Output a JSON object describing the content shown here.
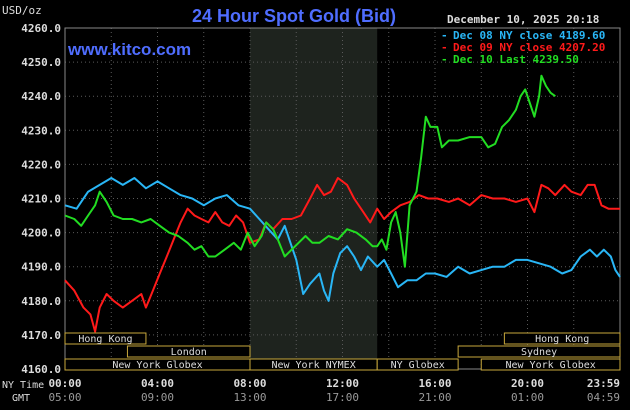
{
  "header": {
    "title": "24 Hour Spot Gold (Bid)",
    "date": "December 10, 2025 20:18",
    "watermark": "www.kitco.com",
    "currency_label": "USD/oz"
  },
  "colors": {
    "background": "#000000",
    "title": "#4f6dff",
    "text": "#dddddd",
    "grid": "#5a5a5a",
    "market_panel": "#1e231e",
    "session_border": "#c8a83c",
    "dec08": "#29b6f6",
    "dec09": "#ff1a1a",
    "dec10": "#22dd22"
  },
  "legend": [
    {
      "prefix": "-",
      "label": "Dec 08 NY close 4189.60",
      "color": "#29b6f6"
    },
    {
      "prefix": "-",
      "label": "Dec 09 NY close 4207.20",
      "color": "#ff1a1a"
    },
    {
      "prefix": "-",
      "label": "Dec 10 Last 4239.50",
      "color": "#22dd22"
    }
  ],
  "axis": {
    "ny_time_label": "NY Time",
    "gmt_label": "GMT",
    "ny_ticks": [
      "00:00",
      "04:00",
      "08:00",
      "12:00",
      "16:00",
      "20:00",
      "23:59"
    ],
    "gmt_ticks": [
      "05:00",
      "09:00",
      "13:00",
      "17:00",
      "21:00",
      "01:00",
      "04:59"
    ],
    "y_ticks": [
      "4260.0",
      "4250.0",
      "4240.0",
      "4230.0",
      "4220.0",
      "4210.0",
      "4200.0",
      "4190.0",
      "4180.0",
      "4170.0",
      "4160.0"
    ]
  },
  "sessions": [
    {
      "label": "Hong Kong",
      "start": 0,
      "end": 3.5
    },
    {
      "label": "London",
      "start": 2.7,
      "end": 8.0
    },
    {
      "label": "New York Globex",
      "start": 0,
      "end": 8.0
    },
    {
      "label": "New York NYMEX",
      "start": 8.0,
      "end": 13.5
    },
    {
      "label": "NY Globex",
      "start": 13.5,
      "end": 17.0
    },
    {
      "label": "Hong Kong",
      "start": 19.0,
      "end": 24
    },
    {
      "label": "Sydney",
      "start": 17.0,
      "end": 24
    },
    {
      "label": "New York Globex",
      "start": 18.0,
      "end": 24
    }
  ],
  "chart_data": {
    "type": "line",
    "title": "24 Hour Spot Gold (Bid)",
    "ylabel": "USD/oz",
    "xlabel": "NY Time",
    "x_unit": "hours since 00:00 NY time",
    "xlim": [
      0,
      24
    ],
    "ylim": [
      4160,
      4260
    ],
    "grid": true,
    "legend_position": "top-right",
    "market_hours_shaded": [
      8.0,
      13.5
    ],
    "series": [
      {
        "name": "Dec 08 NY close 4189.60",
        "color": "#29b6f6",
        "points": [
          [
            0,
            4208
          ],
          [
            0.5,
            4207
          ],
          [
            1,
            4212
          ],
          [
            1.5,
            4214
          ],
          [
            2,
            4216
          ],
          [
            2.5,
            4214
          ],
          [
            3,
            4216
          ],
          [
            3.5,
            4213
          ],
          [
            4,
            4215
          ],
          [
            4.5,
            4213
          ],
          [
            5,
            4211
          ],
          [
            5.5,
            4210
          ],
          [
            6,
            4208
          ],
          [
            6.5,
            4210
          ],
          [
            7,
            4211
          ],
          [
            7.5,
            4208
          ],
          [
            8,
            4207
          ],
          [
            8.4,
            4204
          ],
          [
            8.8,
            4201
          ],
          [
            9.2,
            4198
          ],
          [
            9.5,
            4202
          ],
          [
            9.8,
            4196
          ],
          [
            10,
            4192
          ],
          [
            10.3,
            4182
          ],
          [
            10.6,
            4185
          ],
          [
            11,
            4188
          ],
          [
            11.2,
            4183
          ],
          [
            11.4,
            4180
          ],
          [
            11.6,
            4188
          ],
          [
            11.9,
            4194
          ],
          [
            12.2,
            4196
          ],
          [
            12.5,
            4193
          ],
          [
            12.8,
            4189
          ],
          [
            13.1,
            4193
          ],
          [
            13.5,
            4190
          ],
          [
            13.8,
            4192
          ],
          [
            14.1,
            4188
          ],
          [
            14.4,
            4184
          ],
          [
            14.8,
            4186
          ],
          [
            15.2,
            4186
          ],
          [
            15.6,
            4188
          ],
          [
            16,
            4188
          ],
          [
            16.5,
            4187
          ],
          [
            17,
            4190
          ],
          [
            17.5,
            4188
          ],
          [
            18,
            4189
          ],
          [
            18.5,
            4190
          ],
          [
            19,
            4190
          ],
          [
            19.5,
            4192
          ],
          [
            20,
            4192
          ],
          [
            20.5,
            4191
          ],
          [
            21,
            4190
          ],
          [
            21.5,
            4188
          ],
          [
            21.9,
            4189
          ],
          [
            22.3,
            4193
          ],
          [
            22.7,
            4195
          ],
          [
            23,
            4193
          ],
          [
            23.3,
            4195
          ],
          [
            23.6,
            4193
          ],
          [
            23.8,
            4189
          ],
          [
            24,
            4187
          ]
        ]
      },
      {
        "name": "Dec 09 NY close 4207.20",
        "color": "#ff1a1a",
        "points": [
          [
            0,
            4186
          ],
          [
            0.4,
            4183
          ],
          [
            0.8,
            4178
          ],
          [
            1.1,
            4176
          ],
          [
            1.3,
            4171
          ],
          [
            1.5,
            4178
          ],
          [
            1.8,
            4182
          ],
          [
            2.1,
            4180
          ],
          [
            2.5,
            4178
          ],
          [
            2.9,
            4180
          ],
          [
            3.3,
            4182
          ],
          [
            3.5,
            4178
          ],
          [
            3.8,
            4183
          ],
          [
            4.1,
            4188
          ],
          [
            4.4,
            4193
          ],
          [
            4.7,
            4198
          ],
          [
            5,
            4203
          ],
          [
            5.3,
            4207
          ],
          [
            5.6,
            4205
          ],
          [
            5.9,
            4204
          ],
          [
            6.2,
            4203
          ],
          [
            6.5,
            4206
          ],
          [
            6.8,
            4203
          ],
          [
            7.1,
            4202
          ],
          [
            7.4,
            4205
          ],
          [
            7.7,
            4203
          ],
          [
            8,
            4197
          ],
          [
            8.4,
            4198
          ],
          [
            8.7,
            4203
          ],
          [
            9,
            4201
          ],
          [
            9.4,
            4204
          ],
          [
            9.8,
            4204
          ],
          [
            10.2,
            4205
          ],
          [
            10.6,
            4210
          ],
          [
            10.9,
            4214
          ],
          [
            11.2,
            4211
          ],
          [
            11.5,
            4212
          ],
          [
            11.8,
            4216
          ],
          [
            12.2,
            4214
          ],
          [
            12.5,
            4210
          ],
          [
            12.9,
            4206
          ],
          [
            13.2,
            4203
          ],
          [
            13.5,
            4207
          ],
          [
            13.8,
            4204
          ],
          [
            14.1,
            4206
          ],
          [
            14.5,
            4208
          ],
          [
            14.9,
            4209
          ],
          [
            15.3,
            4211
          ],
          [
            15.7,
            4210
          ],
          [
            16.1,
            4210
          ],
          [
            16.6,
            4209
          ],
          [
            17,
            4210
          ],
          [
            17.5,
            4208
          ],
          [
            18,
            4211
          ],
          [
            18.5,
            4210
          ],
          [
            19,
            4210
          ],
          [
            19.5,
            4209
          ],
          [
            20,
            4210
          ],
          [
            20.3,
            4206
          ],
          [
            20.6,
            4214
          ],
          [
            20.9,
            4213
          ],
          [
            21.2,
            4211
          ],
          [
            21.6,
            4214
          ],
          [
            21.9,
            4212
          ],
          [
            22.3,
            4211
          ],
          [
            22.6,
            4214
          ],
          [
            22.9,
            4214
          ],
          [
            23.2,
            4208
          ],
          [
            23.5,
            4207
          ],
          [
            23.8,
            4207
          ],
          [
            24,
            4207
          ]
        ]
      },
      {
        "name": "Dec 10 Last 4239.50",
        "color": "#22dd22",
        "points": [
          [
            0,
            4205
          ],
          [
            0.4,
            4204
          ],
          [
            0.7,
            4202
          ],
          [
            1,
            4205
          ],
          [
            1.3,
            4208
          ],
          [
            1.5,
            4212
          ],
          [
            1.8,
            4209
          ],
          [
            2.1,
            4205
          ],
          [
            2.5,
            4204
          ],
          [
            2.9,
            4204
          ],
          [
            3.3,
            4203
          ],
          [
            3.7,
            4204
          ],
          [
            4.1,
            4202
          ],
          [
            4.5,
            4200
          ],
          [
            4.9,
            4199
          ],
          [
            5.3,
            4197
          ],
          [
            5.6,
            4195
          ],
          [
            5.9,
            4196
          ],
          [
            6.2,
            4193
          ],
          [
            6.5,
            4193
          ],
          [
            6.9,
            4195
          ],
          [
            7.3,
            4197
          ],
          [
            7.6,
            4195
          ],
          [
            7.9,
            4200
          ],
          [
            8.2,
            4196
          ],
          [
            8.5,
            4199
          ],
          [
            8.7,
            4203
          ],
          [
            9,
            4201
          ],
          [
            9.2,
            4198
          ],
          [
            9.5,
            4193
          ],
          [
            9.8,
            4195
          ],
          [
            10.1,
            4197
          ],
          [
            10.4,
            4199
          ],
          [
            10.7,
            4197
          ],
          [
            11,
            4197
          ],
          [
            11.4,
            4199
          ],
          [
            11.8,
            4198
          ],
          [
            12.2,
            4201
          ],
          [
            12.6,
            4200
          ],
          [
            13,
            4198
          ],
          [
            13.3,
            4196
          ],
          [
            13.5,
            4196
          ],
          [
            13.7,
            4198
          ],
          [
            13.9,
            4195
          ],
          [
            14.1,
            4203
          ],
          [
            14.3,
            4206
          ],
          [
            14.5,
            4200
          ],
          [
            14.7,
            4190
          ],
          [
            14.9,
            4208
          ],
          [
            15.2,
            4212
          ],
          [
            15.4,
            4222
          ],
          [
            15.6,
            4234
          ],
          [
            15.8,
            4231
          ],
          [
            16.1,
            4231
          ],
          [
            16.3,
            4225
          ],
          [
            16.6,
            4227
          ],
          [
            17,
            4227
          ],
          [
            17.5,
            4228
          ],
          [
            18,
            4228
          ],
          [
            18.3,
            4225
          ],
          [
            18.6,
            4226
          ],
          [
            18.9,
            4231
          ],
          [
            19.2,
            4233
          ],
          [
            19.5,
            4236
          ],
          [
            19.7,
            4240
          ],
          [
            19.9,
            4242
          ],
          [
            20.1,
            4238
          ],
          [
            20.3,
            4234
          ],
          [
            20.5,
            4240
          ],
          [
            20.6,
            4246
          ],
          [
            20.8,
            4243
          ],
          [
            21,
            4241
          ],
          [
            21.2,
            4240
          ]
        ]
      }
    ]
  }
}
